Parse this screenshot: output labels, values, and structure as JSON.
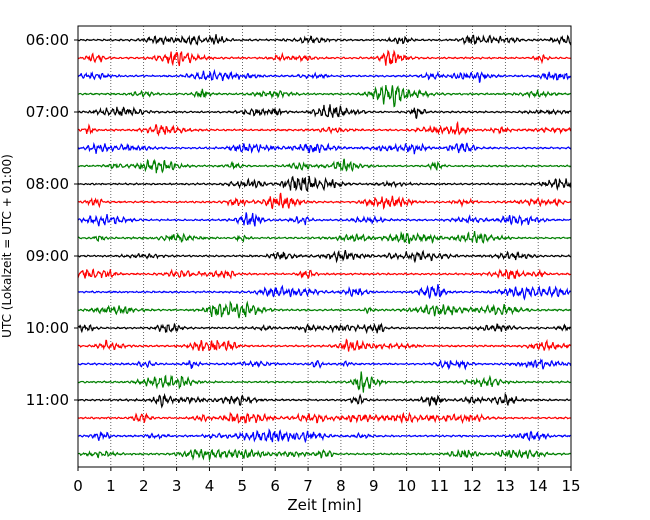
{
  "chart_data": {
    "type": "line",
    "title": "",
    "xlabel": "Zeit  [min]",
    "ylabel": "UTC (Lokalzeit = UTC + 01:00)",
    "xlim": [
      0,
      15
    ],
    "x_ticks": [
      0,
      1,
      2,
      3,
      4,
      5,
      6,
      7,
      8,
      9,
      10,
      11,
      12,
      13,
      14,
      15
    ],
    "y_tick_labels": [
      "06:00",
      "07:00",
      "08:00",
      "09:00",
      "10:00",
      "11:00"
    ],
    "rows_per_hour": 4,
    "trace_start_times": [
      "06:00",
      "06:15",
      "06:30",
      "06:45",
      "07:00",
      "07:15",
      "07:30",
      "07:45",
      "08:00",
      "08:15",
      "08:30",
      "08:45",
      "09:00",
      "09:15",
      "09:30",
      "09:45",
      "10:00",
      "10:15",
      "10:30",
      "10:45",
      "11:00",
      "11:15",
      "11:30",
      "11:45"
    ],
    "trace_colors": [
      "#000000",
      "#ff0000",
      "#0000ff",
      "#008000"
    ],
    "grid": "vertical-dotted",
    "legend": "none"
  }
}
